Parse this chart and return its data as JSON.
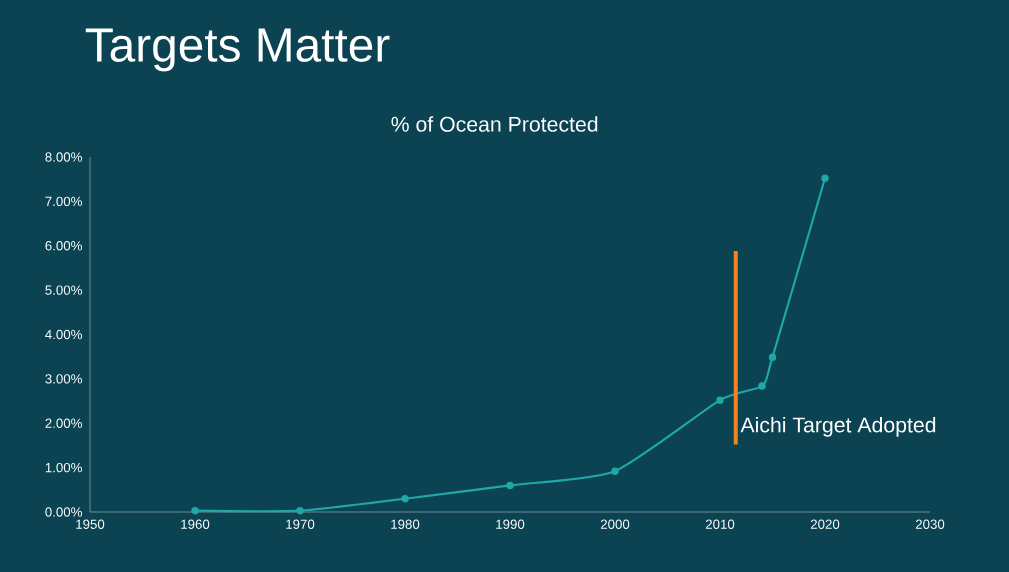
{
  "chart_data": {
    "type": "line",
    "title": "Targets Matter",
    "subtitle": "% of Ocean Protected",
    "series": [
      {
        "color": "#1fa8a8",
        "x": [
          1960,
          1970,
          1980,
          1990,
          2000,
          2010,
          2014,
          2015,
          2020
        ],
        "values": [
          0.03,
          0.03,
          0.3,
          0.6,
          0.92,
          2.52,
          2.84,
          3.49,
          7.52
        ]
      }
    ],
    "xlim": [
      1950,
      2030
    ],
    "xticks": [
      1950,
      1960,
      1970,
      1980,
      1990,
      2000,
      2010,
      2020,
      2030
    ],
    "ylim": [
      0,
      8
    ],
    "yticks": [
      {
        "value": 0,
        "label": "0.00%"
      },
      {
        "value": 1,
        "label": "1.00%"
      },
      {
        "value": 2,
        "label": "2.00%"
      },
      {
        "value": 3,
        "label": "3.00%"
      },
      {
        "value": 4,
        "label": "4.00%"
      },
      {
        "value": 5,
        "label": "5.00%"
      },
      {
        "value": 6,
        "label": "6.00%"
      },
      {
        "value": 7,
        "label": "7.00%"
      },
      {
        "value": 8,
        "label": "8.00%"
      }
    ],
    "ref_lines": [
      {
        "axis": "x",
        "value": 2011.5,
        "label": "Aichi Target Adopted",
        "color": "#f58220"
      }
    ],
    "marker": "circle",
    "grid": false
  }
}
